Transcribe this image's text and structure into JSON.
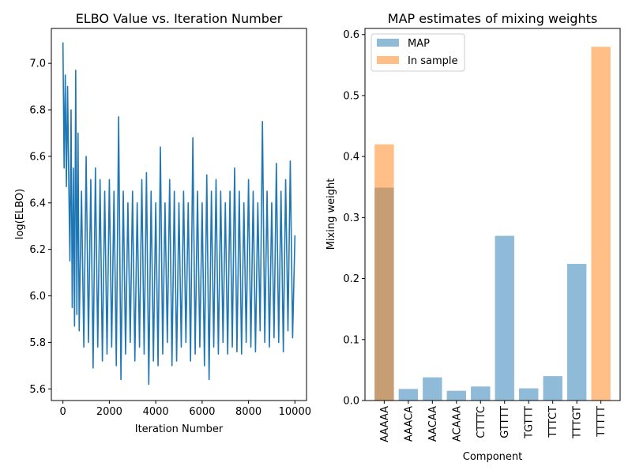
{
  "chart_data": [
    {
      "type": "line",
      "title": "ELBO Value vs. Iteration Number",
      "xlabel": "Iteration Number",
      "ylabel": "log(ELBO)",
      "xlim": [
        -500,
        10500
      ],
      "ylim": [
        5.55,
        7.15
      ],
      "xticks": [
        0,
        2000,
        4000,
        6000,
        8000,
        10000
      ],
      "xtick_labels": [
        "0",
        "2000",
        "4000",
        "6000",
        "8000",
        "10000"
      ],
      "yticks": [
        5.6,
        5.8,
        6.0,
        6.2,
        6.4,
        6.6,
        6.8,
        7.0
      ],
      "ytick_labels": [
        "5.6",
        "5.8",
        "6.0",
        "6.2",
        "6.4",
        "6.6",
        "6.8",
        "7.0"
      ],
      "grid": false,
      "color": "#1f77b4",
      "series": [
        {
          "x": [
            0,
            50,
            100,
            150,
            200,
            250,
            300,
            350,
            400,
            450,
            500,
            550,
            600,
            650,
            700,
            800,
            900,
            1000,
            1100,
            1200,
            1300,
            1400,
            1500,
            1600,
            1700,
            1800,
            1900,
            2000,
            2100,
            2200,
            2300,
            2400,
            2500,
            2600,
            2700,
            2800,
            2900,
            3000,
            3100,
            3200,
            3300,
            3400,
            3500,
            3600,
            3700,
            3800,
            3900,
            4000,
            4100,
            4200,
            4300,
            4400,
            4500,
            4600,
            4700,
            4800,
            4900,
            5000,
            5100,
            5200,
            5300,
            5400,
            5500,
            5600,
            5700,
            5800,
            5900,
            6000,
            6100,
            6200,
            6300,
            6400,
            6500,
            6600,
            6700,
            6800,
            6900,
            7000,
            7100,
            7200,
            7300,
            7400,
            7500,
            7600,
            7700,
            7800,
            7900,
            8000,
            8100,
            8200,
            8300,
            8400,
            8500,
            8600,
            8700,
            8800,
            8900,
            9000,
            9100,
            9200,
            9300,
            9400,
            9500,
            9600,
            9700,
            9800,
            9900,
            10000
          ],
          "values": [
            7.09,
            6.55,
            6.95,
            6.47,
            6.9,
            6.5,
            6.15,
            6.8,
            5.95,
            6.55,
            5.87,
            6.97,
            5.92,
            6.7,
            5.85,
            6.45,
            5.78,
            6.6,
            5.8,
            6.5,
            5.69,
            6.55,
            5.78,
            6.5,
            5.72,
            6.45,
            5.75,
            6.5,
            5.78,
            6.45,
            5.7,
            6.77,
            5.64,
            6.45,
            5.75,
            6.4,
            5.8,
            6.45,
            5.72,
            6.4,
            5.78,
            6.5,
            5.75,
            6.53,
            5.62,
            6.45,
            5.72,
            6.4,
            5.7,
            6.64,
            5.75,
            6.4,
            5.8,
            6.5,
            5.7,
            6.45,
            5.72,
            6.4,
            5.78,
            6.45,
            5.8,
            6.4,
            5.72,
            6.68,
            5.75,
            6.45,
            5.78,
            6.4,
            5.7,
            6.52,
            5.64,
            6.45,
            5.78,
            6.5,
            5.75,
            6.45,
            5.8,
            6.4,
            5.75,
            6.45,
            5.78,
            6.55,
            5.76,
            6.45,
            5.75,
            6.4,
            5.8,
            6.5,
            5.78,
            6.45,
            5.76,
            6.4,
            5.85,
            6.75,
            5.8,
            6.45,
            5.78,
            6.4,
            5.82,
            6.57,
            5.8,
            6.45,
            5.76,
            6.5,
            5.85,
            6.58,
            5.82,
            6.26
          ]
        }
      ]
    },
    {
      "type": "bar",
      "title": "MAP estimates of mixing weights",
      "xlabel": "Component",
      "ylabel": "Mixing weight",
      "ylim": [
        0,
        0.61
      ],
      "yticks": [
        0.0,
        0.1,
        0.2,
        0.3,
        0.4,
        0.5,
        0.6
      ],
      "ytick_labels": [
        "0.0",
        "0.1",
        "0.2",
        "0.3",
        "0.4",
        "0.5",
        "0.6"
      ],
      "categories": [
        "AAAAA",
        "AAACA",
        "AACAA",
        "ACAAA",
        "CTTTC",
        "GTTTT",
        "TGTTT",
        "TTTCT",
        "TTTGT",
        "TTTTT"
      ],
      "grid": false,
      "legend_position": "top-left",
      "series": [
        {
          "name": "MAP",
          "color": "#1f77b4",
          "values": [
            0.349,
            0.019,
            0.038,
            0.016,
            0.023,
            0.27,
            0.02,
            0.04,
            0.224,
            0.0
          ]
        },
        {
          "name": "In sample",
          "color": "#ff7f0e",
          "values": [
            0.42,
            0.0,
            0.0,
            0.0,
            0.0,
            0.0,
            0.0,
            0.0,
            0.0,
            0.58
          ]
        }
      ]
    }
  ]
}
